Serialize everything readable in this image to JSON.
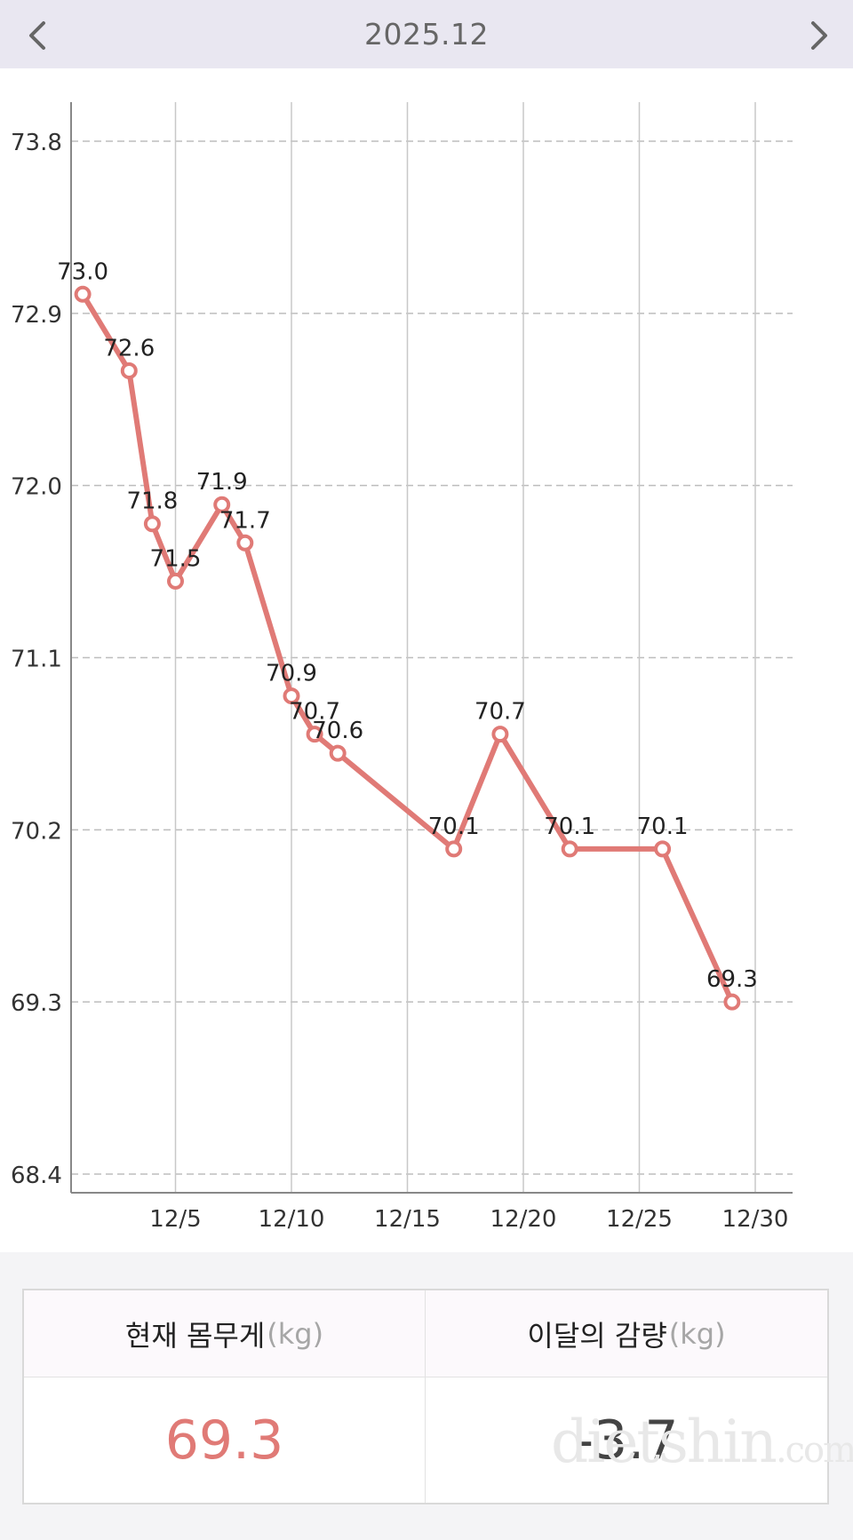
{
  "header": {
    "title": "2025.12",
    "prev_icon": "chevron-left-icon",
    "next_icon": "chevron-right-icon"
  },
  "chart_data": {
    "type": "line",
    "title": "",
    "xlabel": "",
    "ylabel": "",
    "x_ticks": [
      5,
      10,
      15,
      20,
      25,
      30
    ],
    "x_tick_labels": [
      "12/5",
      "12/10",
      "12/15",
      "12/20",
      "12/25",
      "12/30"
    ],
    "y_ticks": [
      68.4,
      69.3,
      70.2,
      71.1,
      72.0,
      72.9,
      73.8
    ],
    "y_tick_labels": [
      "68.4",
      "69.3",
      "70.2",
      "71.1",
      "72.0",
      "72.9",
      "73.8"
    ],
    "xlim": [
      1,
      31
    ],
    "ylim": [
      68.4,
      73.8
    ],
    "grid": true,
    "color": "#e07a76",
    "series": [
      {
        "points": [
          {
            "x": 1,
            "y": 73.0,
            "label": "73.0"
          },
          {
            "x": 3,
            "y": 72.6,
            "label": "72.6"
          },
          {
            "x": 4,
            "y": 71.8,
            "label": "71.8"
          },
          {
            "x": 5,
            "y": 71.5,
            "label": "71.5"
          },
          {
            "x": 7,
            "y": 71.9,
            "label": "71.9"
          },
          {
            "x": 8,
            "y": 71.7,
            "label": "71.7"
          },
          {
            "x": 10,
            "y": 70.9,
            "label": "70.9"
          },
          {
            "x": 11,
            "y": 70.7,
            "label": "70.7"
          },
          {
            "x": 12,
            "y": 70.6,
            "label": "70.6"
          },
          {
            "x": 17,
            "y": 70.1,
            "label": "70.1"
          },
          {
            "x": 19,
            "y": 70.7,
            "label": "70.7"
          },
          {
            "x": 22,
            "y": 70.1,
            "label": "70.1"
          },
          {
            "x": 26,
            "y": 70.1,
            "label": "70.1"
          },
          {
            "x": 29,
            "y": 69.3,
            "label": "69.3"
          }
        ]
      }
    ]
  },
  "summary": {
    "current_label": "현재 몸무게",
    "current_unit": "(kg)",
    "current_value": "69.3",
    "loss_label": "이달의 감량",
    "loss_unit": "(kg)",
    "loss_value": "-3.7"
  },
  "watermark": {
    "text": "dietshin",
    "suffix": ".com"
  }
}
